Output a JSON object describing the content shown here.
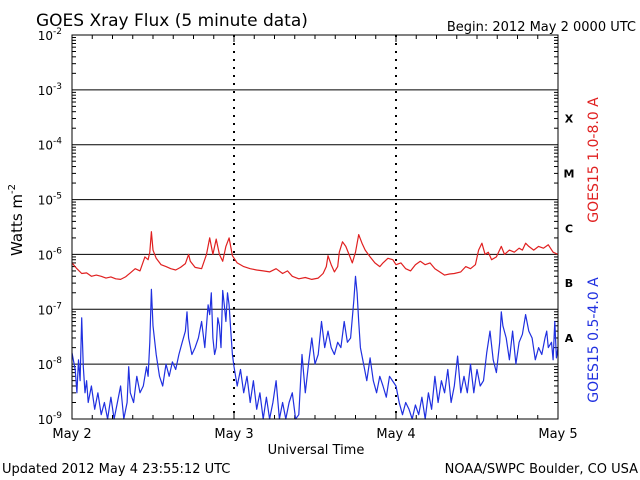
{
  "chart_data": {
    "type": "line",
    "title": "GOES Xray Flux (5 minute data)",
    "begin_label": "Begin:  2012 May 2 0000 UTC",
    "ylabel": "Watts m",
    "ylabel_sup": "-2",
    "xlabel": "Universal Time",
    "updated": "Updated 2012 May  4 23:55:12 UTC",
    "credit": "NOAA/SWPC Boulder, CO USA",
    "y_scale": "log",
    "ylim": [
      1e-09,
      0.01
    ],
    "y_ticks": [
      {
        "mant": "10",
        "exp": "-2",
        "value": 0.01
      },
      {
        "mant": "10",
        "exp": "-3",
        "value": 0.001
      },
      {
        "mant": "10",
        "exp": "-4",
        "value": 0.0001
      },
      {
        "mant": "10",
        "exp": "-5",
        "value": 1e-05
      },
      {
        "mant": "10",
        "exp": "-6",
        "value": 1e-06
      },
      {
        "mant": "10",
        "exp": "-7",
        "value": 1e-07
      },
      {
        "mant": "10",
        "exp": "-8",
        "value": 1e-08
      },
      {
        "mant": "10",
        "exp": "-9",
        "value": 1e-09
      }
    ],
    "x_ticks": [
      "May 2",
      "May 3",
      "May 4",
      "May 5"
    ],
    "xlim_days": [
      0,
      3
    ],
    "flare_classes": [
      {
        "label": "X",
        "value": 0.0003
      },
      {
        "label": "M",
        "value": 3e-05
      },
      {
        "label": "C",
        "value": 3e-06
      },
      {
        "label": "B",
        "value": 3e-07
      },
      {
        "label": "A",
        "value": 3e-08
      }
    ],
    "series": [
      {
        "name": "GOES15 1.0-8.0 A",
        "color": "#e02020",
        "points": [
          [
            0.0,
            7e-07
          ],
          [
            0.03,
            5.5e-07
          ],
          [
            0.06,
            4.5e-07
          ],
          [
            0.09,
            4.6e-07
          ],
          [
            0.12,
            4e-07
          ],
          [
            0.15,
            4.2e-07
          ],
          [
            0.18,
            4e-07
          ],
          [
            0.21,
            3.7e-07
          ],
          [
            0.24,
            3.9e-07
          ],
          [
            0.27,
            3.6e-07
          ],
          [
            0.3,
            3.5e-07
          ],
          [
            0.33,
            3.9e-07
          ],
          [
            0.36,
            4.6e-07
          ],
          [
            0.39,
            5.5e-07
          ],
          [
            0.42,
            5e-07
          ],
          [
            0.45,
            9e-07
          ],
          [
            0.47,
            8e-07
          ],
          [
            0.48,
            1.1e-06
          ],
          [
            0.49,
            2.6e-06
          ],
          [
            0.5,
            1.2e-06
          ],
          [
            0.52,
            8.5e-07
          ],
          [
            0.55,
            6.5e-07
          ],
          [
            0.58,
            6e-07
          ],
          [
            0.61,
            5.5e-07
          ],
          [
            0.64,
            5.2e-07
          ],
          [
            0.67,
            5.8e-07
          ],
          [
            0.7,
            6.8e-07
          ],
          [
            0.72,
            1e-06
          ],
          [
            0.73,
            7.5e-07
          ],
          [
            0.76,
            5.8e-07
          ],
          [
            0.8,
            5.5e-07
          ],
          [
            0.83,
            1e-06
          ],
          [
            0.85,
            2e-06
          ],
          [
            0.87,
            1e-06
          ],
          [
            0.89,
            1.9e-06
          ],
          [
            0.91,
            1e-06
          ],
          [
            0.93,
            7.5e-07
          ],
          [
            0.95,
            1.4e-06
          ],
          [
            0.97,
            2e-06
          ],
          [
            0.99,
            9.5e-07
          ],
          [
            1.02,
            7e-07
          ],
          [
            1.06,
            6e-07
          ],
          [
            1.1,
            5.5e-07
          ],
          [
            1.14,
            5.2e-07
          ],
          [
            1.18,
            5e-07
          ],
          [
            1.22,
            4.8e-07
          ],
          [
            1.26,
            5.5e-07
          ],
          [
            1.3,
            4.5e-07
          ],
          [
            1.33,
            5e-07
          ],
          [
            1.36,
            4e-07
          ],
          [
            1.4,
            3.6e-07
          ],
          [
            1.44,
            3.8e-07
          ],
          [
            1.48,
            3.5e-07
          ],
          [
            1.52,
            3.7e-07
          ],
          [
            1.55,
            4.5e-07
          ],
          [
            1.57,
            6e-07
          ],
          [
            1.58,
            9.5e-07
          ],
          [
            1.6,
            6.5e-07
          ],
          [
            1.62,
            4.8e-07
          ],
          [
            1.64,
            6e-07
          ],
          [
            1.65,
            1.1e-06
          ],
          [
            1.67,
            1.7e-06
          ],
          [
            1.69,
            1.4e-06
          ],
          [
            1.71,
            1e-06
          ],
          [
            1.73,
            7e-07
          ],
          [
            1.75,
            1.1e-06
          ],
          [
            1.77,
            2.3e-06
          ],
          [
            1.79,
            1.6e-06
          ],
          [
            1.81,
            1.2e-06
          ],
          [
            1.84,
            9e-07
          ],
          [
            1.87,
            7e-07
          ],
          [
            1.9,
            6e-07
          ],
          [
            1.92,
            7e-07
          ],
          [
            1.95,
            8.5e-07
          ],
          [
            1.98,
            8e-07
          ],
          [
            2.0,
            6.5e-07
          ],
          [
            2.03,
            7e-07
          ],
          [
            2.06,
            5.5e-07
          ],
          [
            2.09,
            5e-07
          ],
          [
            2.12,
            6.5e-07
          ],
          [
            2.15,
            7.5e-07
          ],
          [
            2.18,
            6.5e-07
          ],
          [
            2.21,
            7e-07
          ],
          [
            2.24,
            5.5e-07
          ],
          [
            2.27,
            4.8e-07
          ],
          [
            2.3,
            4.2e-07
          ],
          [
            2.33,
            4.4e-07
          ],
          [
            2.36,
            4.5e-07
          ],
          [
            2.4,
            4.8e-07
          ],
          [
            2.43,
            6e-07
          ],
          [
            2.46,
            5.5e-07
          ],
          [
            2.49,
            6.5e-07
          ],
          [
            2.51,
            1.2e-06
          ],
          [
            2.53,
            1.6e-06
          ],
          [
            2.55,
            1e-06
          ],
          [
            2.57,
            1.1e-06
          ],
          [
            2.59,
            8e-07
          ],
          [
            2.62,
            9e-07
          ],
          [
            2.65,
            1.4e-06
          ],
          [
            2.67,
            1e-06
          ],
          [
            2.7,
            1.2e-06
          ],
          [
            2.73,
            1.1e-06
          ],
          [
            2.76,
            1.3e-06
          ],
          [
            2.78,
            1.2e-06
          ],
          [
            2.8,
            1.6e-06
          ],
          [
            2.82,
            1.4e-06
          ],
          [
            2.85,
            1.2e-06
          ],
          [
            2.88,
            1.4e-06
          ],
          [
            2.91,
            1.3e-06
          ],
          [
            2.94,
            1.5e-06
          ],
          [
            2.97,
            1.1e-06
          ],
          [
            3.0,
            1e-06
          ]
        ]
      },
      {
        "name": "GOES15 0.5-4.0 A",
        "color": "#2030e0",
        "points": [
          [
            0.0,
            1.6e-08
          ],
          [
            0.02,
            8e-09
          ],
          [
            0.03,
            3e-09
          ],
          [
            0.04,
            1.2e-08
          ],
          [
            0.05,
            5e-09
          ],
          [
            0.06,
            7e-08
          ],
          [
            0.07,
            9e-09
          ],
          [
            0.08,
            3e-09
          ],
          [
            0.09,
            5e-09
          ],
          [
            0.1,
            2e-09
          ],
          [
            0.12,
            4e-09
          ],
          [
            0.14,
            1.5e-09
          ],
          [
            0.16,
            3e-09
          ],
          [
            0.18,
            1.2e-09
          ],
          [
            0.2,
            2e-09
          ],
          [
            0.22,
            1e-09
          ],
          [
            0.24,
            2.5e-09
          ],
          [
            0.26,
            1e-09
          ],
          [
            0.28,
            2e-09
          ],
          [
            0.3,
            4e-09
          ],
          [
            0.32,
            1e-09
          ],
          [
            0.34,
            2e-09
          ],
          [
            0.35,
            9e-09
          ],
          [
            0.36,
            3e-09
          ],
          [
            0.38,
            2e-09
          ],
          [
            0.4,
            6e-09
          ],
          [
            0.42,
            3e-09
          ],
          [
            0.44,
            4e-09
          ],
          [
            0.46,
            9e-09
          ],
          [
            0.47,
            6e-09
          ],
          [
            0.48,
            2.5e-08
          ],
          [
            0.49,
            2.3e-07
          ],
          [
            0.5,
            5e-08
          ],
          [
            0.52,
            1.5e-08
          ],
          [
            0.54,
            6e-09
          ],
          [
            0.56,
            4e-09
          ],
          [
            0.58,
            1e-08
          ],
          [
            0.6,
            6e-09
          ],
          [
            0.62,
            1.1e-08
          ],
          [
            0.64,
            8e-09
          ],
          [
            0.66,
            1.5e-08
          ],
          [
            0.68,
            2.5e-08
          ],
          [
            0.7,
            4e-08
          ],
          [
            0.71,
            9e-08
          ],
          [
            0.72,
            3e-08
          ],
          [
            0.74,
            1.5e-08
          ],
          [
            0.76,
            2e-08
          ],
          [
            0.78,
            3e-08
          ],
          [
            0.8,
            6e-08
          ],
          [
            0.82,
            2e-08
          ],
          [
            0.84,
            1.2e-07
          ],
          [
            0.85,
            8e-08
          ],
          [
            0.86,
            2e-07
          ],
          [
            0.87,
            3e-08
          ],
          [
            0.88,
            1.5e-08
          ],
          [
            0.89,
            2e-08
          ],
          [
            0.9,
            7e-08
          ],
          [
            0.91,
            5e-08
          ],
          [
            0.92,
            2e-08
          ],
          [
            0.93,
            2.2e-07
          ],
          [
            0.94,
            1.2e-07
          ],
          [
            0.95,
            6e-08
          ],
          [
            0.96,
            2e-07
          ],
          [
            0.97,
            1.2e-07
          ],
          [
            0.98,
            4e-08
          ],
          [
            0.99,
            1.5e-08
          ],
          [
            1.0,
            9e-09
          ],
          [
            1.02,
            4e-09
          ],
          [
            1.04,
            8e-09
          ],
          [
            1.06,
            3e-09
          ],
          [
            1.08,
            6e-09
          ],
          [
            1.1,
            2e-09
          ],
          [
            1.12,
            5e-09
          ],
          [
            1.14,
            1.5e-09
          ],
          [
            1.16,
            3e-09
          ],
          [
            1.18,
            1e-09
          ],
          [
            1.2,
            2.5e-09
          ],
          [
            1.22,
            1e-09
          ],
          [
            1.24,
            2e-09
          ],
          [
            1.26,
            5e-09
          ],
          [
            1.28,
            1e-09
          ],
          [
            1.3,
            2e-09
          ],
          [
            1.32,
            1e-09
          ],
          [
            1.34,
            2e-09
          ],
          [
            1.36,
            3e-09
          ],
          [
            1.38,
            1e-09
          ],
          [
            1.4,
            1.2e-09
          ],
          [
            1.42,
            1.5e-08
          ],
          [
            1.44,
            3e-09
          ],
          [
            1.46,
            1e-08
          ],
          [
            1.48,
            3e-08
          ],
          [
            1.5,
            1e-08
          ],
          [
            1.52,
            1.5e-08
          ],
          [
            1.54,
            6e-08
          ],
          [
            1.56,
            2e-08
          ],
          [
            1.58,
            4e-08
          ],
          [
            1.6,
            2e-08
          ],
          [
            1.62,
            1.5e-08
          ],
          [
            1.64,
            2.5e-08
          ],
          [
            1.66,
            2e-08
          ],
          [
            1.68,
            6e-08
          ],
          [
            1.7,
            2.5e-08
          ],
          [
            1.72,
            3e-08
          ],
          [
            1.74,
            1.5e-07
          ],
          [
            1.75,
            4e-07
          ],
          [
            1.76,
            2e-07
          ],
          [
            1.77,
            6e-08
          ],
          [
            1.78,
            2e-08
          ],
          [
            1.8,
            1e-08
          ],
          [
            1.82,
            5e-09
          ],
          [
            1.84,
            1.3e-08
          ],
          [
            1.86,
            5e-09
          ],
          [
            1.88,
            3e-09
          ],
          [
            1.9,
            6e-09
          ],
          [
            1.92,
            4e-09
          ],
          [
            1.94,
            2.5e-09
          ],
          [
            1.96,
            6e-09
          ],
          [
            2.0,
            4e-09
          ],
          [
            2.02,
            2e-09
          ],
          [
            2.04,
            1.2e-09
          ],
          [
            2.06,
            2e-09
          ],
          [
            2.08,
            1.5e-09
          ],
          [
            2.1,
            1e-09
          ],
          [
            2.12,
            1.8e-09
          ],
          [
            2.14,
            1.2e-09
          ],
          [
            2.16,
            2.5e-09
          ],
          [
            2.18,
            1e-09
          ],
          [
            2.2,
            3e-09
          ],
          [
            2.22,
            1.5e-09
          ],
          [
            2.24,
            6e-09
          ],
          [
            2.26,
            2e-09
          ],
          [
            2.28,
            5e-09
          ],
          [
            2.3,
            3e-09
          ],
          [
            2.32,
            8e-09
          ],
          [
            2.34,
            2e-09
          ],
          [
            2.36,
            4e-09
          ],
          [
            2.38,
            1.4e-08
          ],
          [
            2.4,
            3e-09
          ],
          [
            2.42,
            6e-09
          ],
          [
            2.44,
            3e-09
          ],
          [
            2.46,
            1e-08
          ],
          [
            2.48,
            3e-09
          ],
          [
            2.5,
            8e-09
          ],
          [
            2.52,
            4e-09
          ],
          [
            2.54,
            5e-09
          ],
          [
            2.56,
            1.6e-08
          ],
          [
            2.58,
            4e-08
          ],
          [
            2.6,
            1.2e-08
          ],
          [
            2.62,
            7e-09
          ],
          [
            2.64,
            2.5e-08
          ],
          [
            2.65,
            9e-08
          ],
          [
            2.66,
            5e-08
          ],
          [
            2.68,
            3e-08
          ],
          [
            2.7,
            1.2e-08
          ],
          [
            2.72,
            4e-08
          ],
          [
            2.74,
            1e-08
          ],
          [
            2.76,
            2.5e-08
          ],
          [
            2.78,
            3.5e-08
          ],
          [
            2.8,
            8e-08
          ],
          [
            2.82,
            4e-08
          ],
          [
            2.84,
            3e-08
          ],
          [
            2.86,
            1.2e-08
          ],
          [
            2.88,
            2e-08
          ],
          [
            2.9,
            1.5e-08
          ],
          [
            2.92,
            3e-08
          ],
          [
            2.93,
            4e-08
          ],
          [
            2.94,
            2e-08
          ],
          [
            2.96,
            2.5e-08
          ],
          [
            2.97,
            1.2e-08
          ],
          [
            2.98,
            6e-08
          ],
          [
            2.99,
            1.3e-08
          ],
          [
            3.0,
            2e-08
          ]
        ]
      }
    ]
  }
}
